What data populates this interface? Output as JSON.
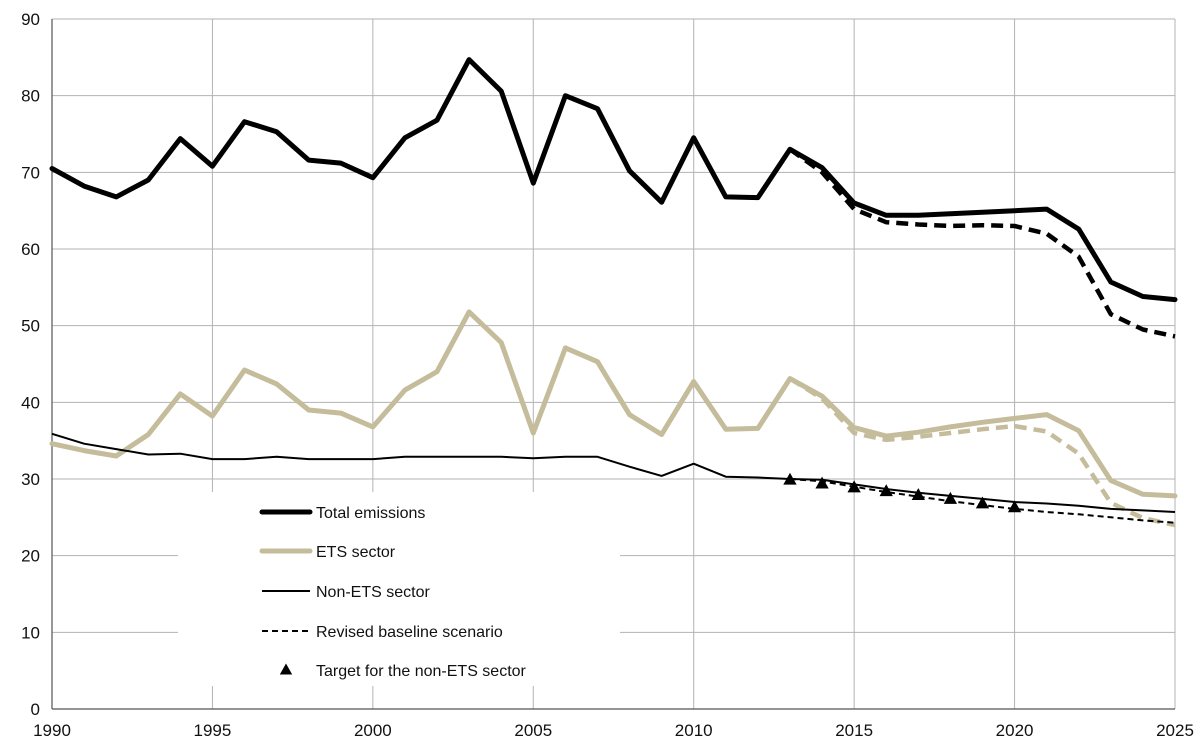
{
  "chart_data": {
    "type": "line",
    "xlim": [
      1990,
      2025
    ],
    "ylim": [
      0,
      90
    ],
    "x_ticks": [
      1990,
      1995,
      2000,
      2005,
      2010,
      2015,
      2020,
      2025
    ],
    "y_ticks": [
      0,
      10,
      20,
      30,
      40,
      50,
      60,
      70,
      80,
      90
    ],
    "grid": true,
    "legend_position": "lower-left",
    "colors": {
      "black": "#000000",
      "tan": "#c4bc9a",
      "grid": "#b3b3b3"
    },
    "series": [
      {
        "name": "Total emissions",
        "style": "thick-solid",
        "color": "#000000",
        "x": [
          1990,
          1991,
          1992,
          1993,
          1994,
          1995,
          1996,
          1997,
          1998,
          1999,
          2000,
          2001,
          2002,
          2003,
          2004,
          2005,
          2006,
          2007,
          2008,
          2009,
          2010,
          2011,
          2012,
          2013,
          2014,
          2015,
          2016,
          2017,
          2018,
          2019,
          2020,
          2021,
          2022,
          2023,
          2024,
          2025
        ],
        "y": [
          70.5,
          68.2,
          66.8,
          69.0,
          74.4,
          70.8,
          76.6,
          75.3,
          71.6,
          71.2,
          69.3,
          74.5,
          76.8,
          84.7,
          80.6,
          68.6,
          80.0,
          78.3,
          70.2,
          66.1,
          74.5,
          66.8,
          66.7,
          73.0,
          70.6,
          66.0,
          64.4,
          64.4,
          64.6,
          64.8,
          65.0,
          65.2,
          62.6,
          55.7,
          53.8,
          53.4
        ]
      },
      {
        "name": "",
        "style": "thick-dashed",
        "color": "#000000",
        "x": [
          2013,
          2014,
          2015,
          2016,
          2017,
          2018,
          2019,
          2020,
          2021,
          2022,
          2023,
          2024,
          2025
        ],
        "y": [
          73.0,
          70.0,
          65.2,
          63.5,
          63.2,
          63.0,
          63.1,
          63.0,
          62.0,
          59.0,
          51.5,
          49.5,
          48.6
        ]
      },
      {
        "name": "ETS sector",
        "style": "thick-solid",
        "color": "#c4bc9a",
        "x": [
          1990,
          1991,
          1992,
          1993,
          1994,
          1995,
          1996,
          1997,
          1998,
          1999,
          2000,
          2001,
          2002,
          2003,
          2004,
          2005,
          2006,
          2007,
          2008,
          2009,
          2010,
          2011,
          2012,
          2013,
          2014,
          2015,
          2016,
          2017,
          2018,
          2019,
          2020,
          2021,
          2022,
          2023,
          2024,
          2025
        ],
        "y": [
          34.6,
          33.7,
          33.0,
          35.8,
          41.1,
          38.2,
          44.2,
          42.4,
          39.0,
          38.6,
          36.8,
          41.6,
          44.0,
          51.8,
          47.8,
          36.0,
          47.1,
          45.3,
          38.4,
          35.8,
          42.7,
          36.5,
          36.6,
          43.1,
          40.8,
          36.7,
          35.6,
          36.1,
          36.8,
          37.4,
          37.9,
          38.4,
          36.3,
          29.8,
          28.0,
          27.8
        ]
      },
      {
        "name": "",
        "style": "thick-dashed",
        "color": "#c4bc9a",
        "x": [
          2013,
          2014,
          2015,
          2016,
          2017,
          2018,
          2019,
          2020,
          2021,
          2022,
          2023,
          2024,
          2025
        ],
        "y": [
          43.1,
          40.5,
          36.0,
          35.1,
          35.5,
          36.0,
          36.5,
          36.9,
          36.2,
          33.3,
          26.9,
          24.9,
          24.0
        ]
      },
      {
        "name": "Non-ETS sector",
        "style": "thin-solid",
        "color": "#000000",
        "x": [
          1990,
          1991,
          1992,
          1993,
          1994,
          1995,
          1996,
          1997,
          1998,
          1999,
          2000,
          2001,
          2002,
          2003,
          2004,
          2005,
          2006,
          2007,
          2008,
          2009,
          2010,
          2011,
          2012,
          2013,
          2014,
          2015,
          2016,
          2017,
          2018,
          2019,
          2020,
          2021,
          2022,
          2023,
          2024,
          2025
        ],
        "y": [
          35.9,
          34.6,
          33.9,
          33.2,
          33.3,
          32.6,
          32.6,
          32.9,
          32.6,
          32.6,
          32.6,
          32.9,
          32.9,
          32.9,
          32.9,
          32.7,
          32.9,
          32.9,
          31.6,
          30.4,
          32.0,
          30.3,
          30.2,
          30.0,
          29.9,
          29.3,
          28.7,
          28.2,
          27.8,
          27.4,
          27.0,
          26.8,
          26.5,
          26.1,
          25.9,
          25.7
        ]
      },
      {
        "name": "Revised baseline scenario",
        "style": "thin-dashed",
        "color": "#000000",
        "x": [
          2013,
          2014,
          2015,
          2016,
          2017,
          2018,
          2019,
          2020,
          2021,
          2022,
          2023,
          2024,
          2025
        ],
        "y": [
          30.0,
          29.7,
          29.0,
          28.3,
          27.7,
          27.1,
          26.6,
          26.1,
          25.7,
          25.4,
          25.0,
          24.6,
          24.3
        ]
      },
      {
        "name": "Target for the non-ETS sector",
        "style": "triangle-markers",
        "color": "#000000",
        "x": [
          2013,
          2014,
          2015,
          2016,
          2017,
          2018,
          2019,
          2020
        ],
        "y": [
          29.9,
          29.4,
          28.9,
          28.4,
          27.9,
          27.4,
          26.8,
          26.3
        ]
      }
    ],
    "legend": [
      {
        "label": "Total emissions",
        "style": "thick-solid",
        "color": "#000000"
      },
      {
        "label": "ETS sector",
        "style": "thick-solid",
        "color": "#c4bc9a"
      },
      {
        "label": "Non-ETS sector",
        "style": "thin-solid",
        "color": "#000000"
      },
      {
        "label": "Revised baseline scenario",
        "style": "thin-dashed",
        "color": "#000000"
      },
      {
        "label": "Target for the non-ETS sector",
        "style": "triangle-markers",
        "color": "#000000"
      }
    ]
  }
}
